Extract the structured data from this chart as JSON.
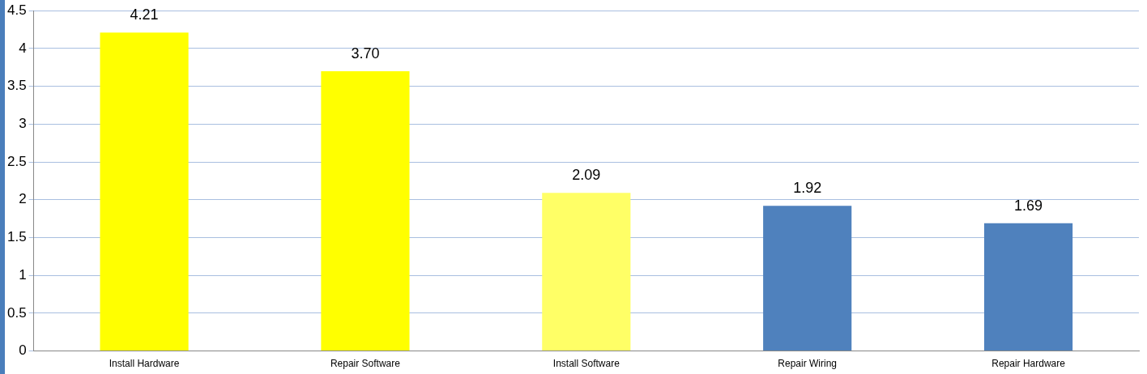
{
  "chart_data": {
    "type": "bar",
    "categories": [
      "Install Hardware",
      "Repair Software",
      "Install Software",
      "Repair Wiring",
      "Repair Hardware"
    ],
    "values": [
      4.21,
      3.7,
      2.09,
      1.92,
      1.69
    ],
    "colors": [
      "#ffff00",
      "#ffff00",
      "#ffff66",
      "#4f81bd",
      "#4f81bd"
    ],
    "value_labels": [
      "4.21",
      "3.70",
      "2.09",
      "1.92",
      "1.69"
    ],
    "ylim": [
      0,
      4.5
    ],
    "yticks": [
      0,
      0.5,
      1,
      1.5,
      2,
      2.5,
      3,
      3.5,
      4,
      4.5
    ],
    "grid": "y",
    "legend": false
  }
}
